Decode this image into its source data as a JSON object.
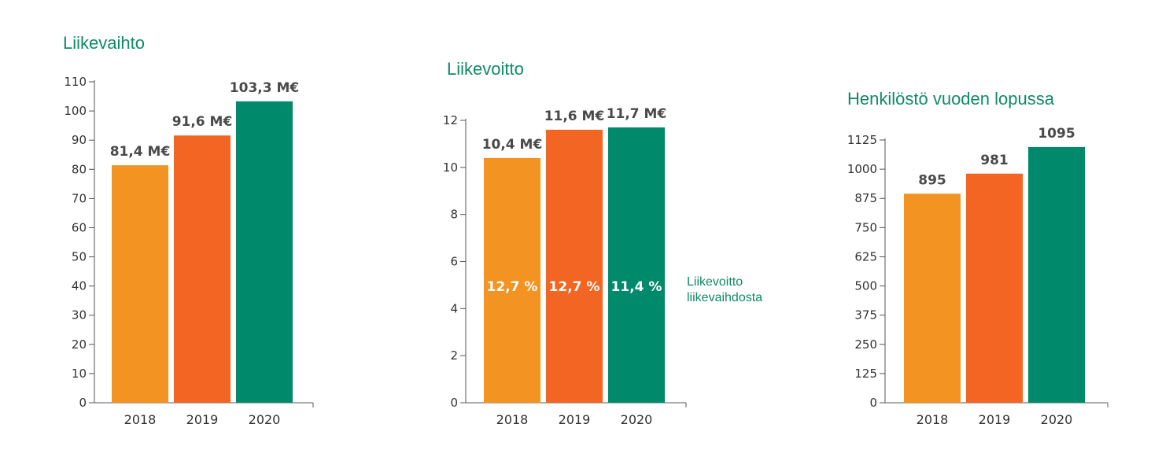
{
  "colors": {
    "orange": "#f39322",
    "red_orange": "#f26522",
    "green": "#00896a",
    "title": "#0f8a66"
  },
  "chart_data": [
    {
      "type": "bar",
      "title": "Liikevaihto",
      "categories": [
        "2018",
        "2019",
        "2020"
      ],
      "values": [
        81.4,
        91.6,
        103.3
      ],
      "data_labels": [
        "81,4 M€",
        "91,6 M€",
        "103,3 M€"
      ],
      "yticks": [
        "0",
        "10",
        "20",
        "30",
        "40",
        "50",
        "60",
        "70",
        "80",
        "90",
        "100",
        "110"
      ],
      "ylim": [
        0,
        110
      ],
      "bar_colors": [
        "#f39322",
        "#f26522",
        "#00896a"
      ],
      "grid": false,
      "legend": "none"
    },
    {
      "type": "bar",
      "title": "Liikevoitto",
      "categories": [
        "2018",
        "2019",
        "2020"
      ],
      "values": [
        10.4,
        11.6,
        11.7
      ],
      "data_labels": [
        "10,4 M€",
        "11,6 M€",
        "11,7 M€"
      ],
      "inner_labels": [
        "12,7 %",
        "12,7 %",
        "11,4 %"
      ],
      "annotation": [
        "Liikevoitto",
        "liikevaihdosta"
      ],
      "yticks": [
        "0",
        "2",
        "4",
        "6",
        "8",
        "10",
        "12"
      ],
      "ylim": [
        0,
        12
      ],
      "bar_colors": [
        "#f39322",
        "#f26522",
        "#00896a"
      ],
      "grid": false,
      "legend": "none"
    },
    {
      "type": "bar",
      "title": "Henkilöstö vuoden lopussa",
      "categories": [
        "2018",
        "2019",
        "2020"
      ],
      "values": [
        895,
        981,
        1095
      ],
      "data_labels": [
        "895",
        "981",
        "1095"
      ],
      "yticks": [
        "0",
        "125",
        "250",
        "375",
        "500",
        "625",
        "750",
        "875",
        "1000",
        "1125"
      ],
      "ylim": [
        0,
        1125
      ],
      "bar_colors": [
        "#f39322",
        "#f26522",
        "#00896a"
      ],
      "grid": false,
      "legend": "none"
    }
  ]
}
